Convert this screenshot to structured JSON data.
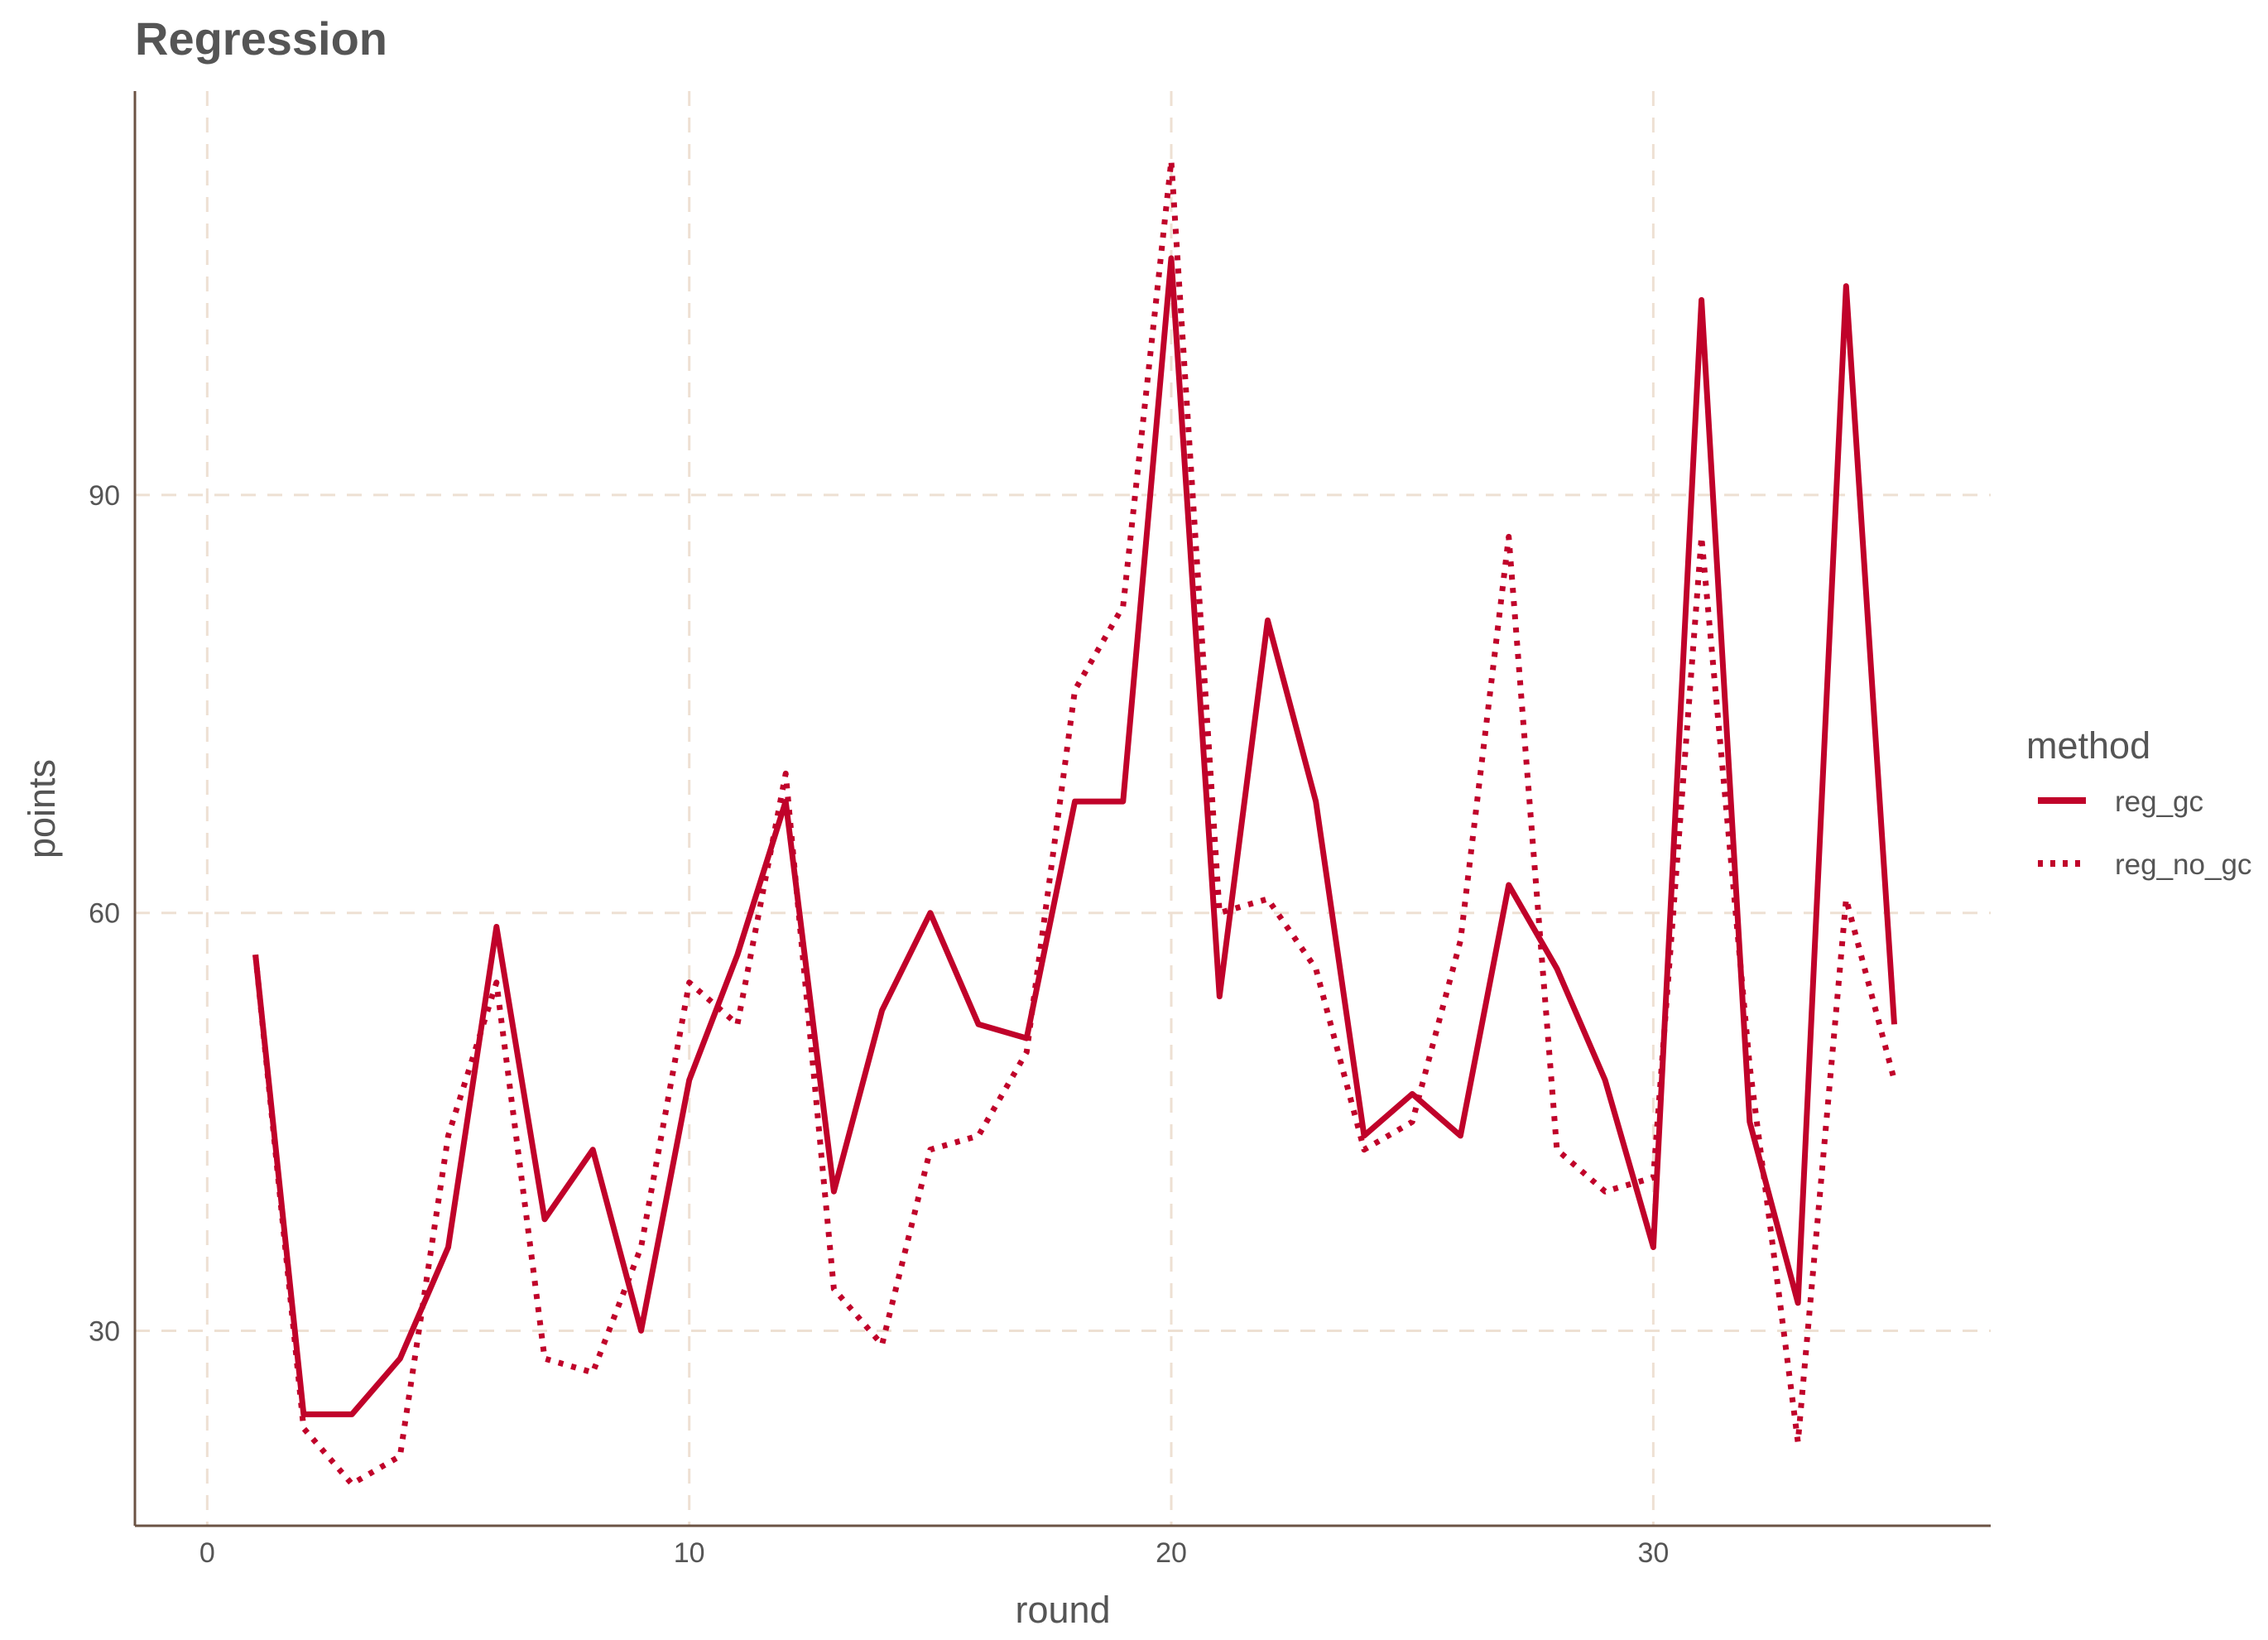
{
  "chart_data": {
    "type": "line",
    "title": "Regression",
    "xlabel": "round",
    "ylabel": "points",
    "xlim": [
      -1.5,
      37
    ],
    "ylim": [
      16,
      119
    ],
    "x_ticks": [
      0,
      10,
      20,
      30
    ],
    "y_ticks": [
      30,
      60,
      90
    ],
    "grid": true,
    "legend": {
      "title": "method",
      "placement": "right"
    },
    "x": [
      1,
      2,
      3,
      4,
      5,
      6,
      7,
      8,
      9,
      10,
      11,
      12,
      13,
      14,
      15,
      16,
      17,
      18,
      19,
      20,
      21,
      22,
      23,
      24,
      25,
      26,
      27,
      28,
      29,
      30,
      31,
      32,
      33,
      34,
      35
    ],
    "series": [
      {
        "name": "reg_gc",
        "style": "solid",
        "color": "#C0022A",
        "values": [
          57,
          24,
          24,
          28,
          36,
          59,
          38,
          43,
          30,
          48,
          57,
          68,
          40,
          53,
          60,
          52,
          51,
          68,
          68,
          107,
          54,
          81,
          68,
          44,
          47,
          44,
          62,
          56,
          48,
          36,
          104,
          45,
          32,
          105,
          52
        ]
      },
      {
        "name": "reg_no_gc",
        "style": "dotted",
        "color": "#C0022A",
        "values": [
          57,
          23,
          19,
          21,
          44,
          55,
          28,
          27,
          36,
          55,
          52,
          70,
          33,
          29,
          43,
          44,
          50,
          76,
          82,
          114,
          60,
          61,
          56,
          43,
          45,
          58,
          87,
          43,
          40,
          41,
          87,
          49,
          22,
          61,
          48
        ]
      }
    ]
  },
  "colors": {
    "line": "#C0022A",
    "axis": "#6B5344",
    "grid": "#EEE0D3",
    "text": "#555555",
    "background": "#FFFFFF"
  }
}
